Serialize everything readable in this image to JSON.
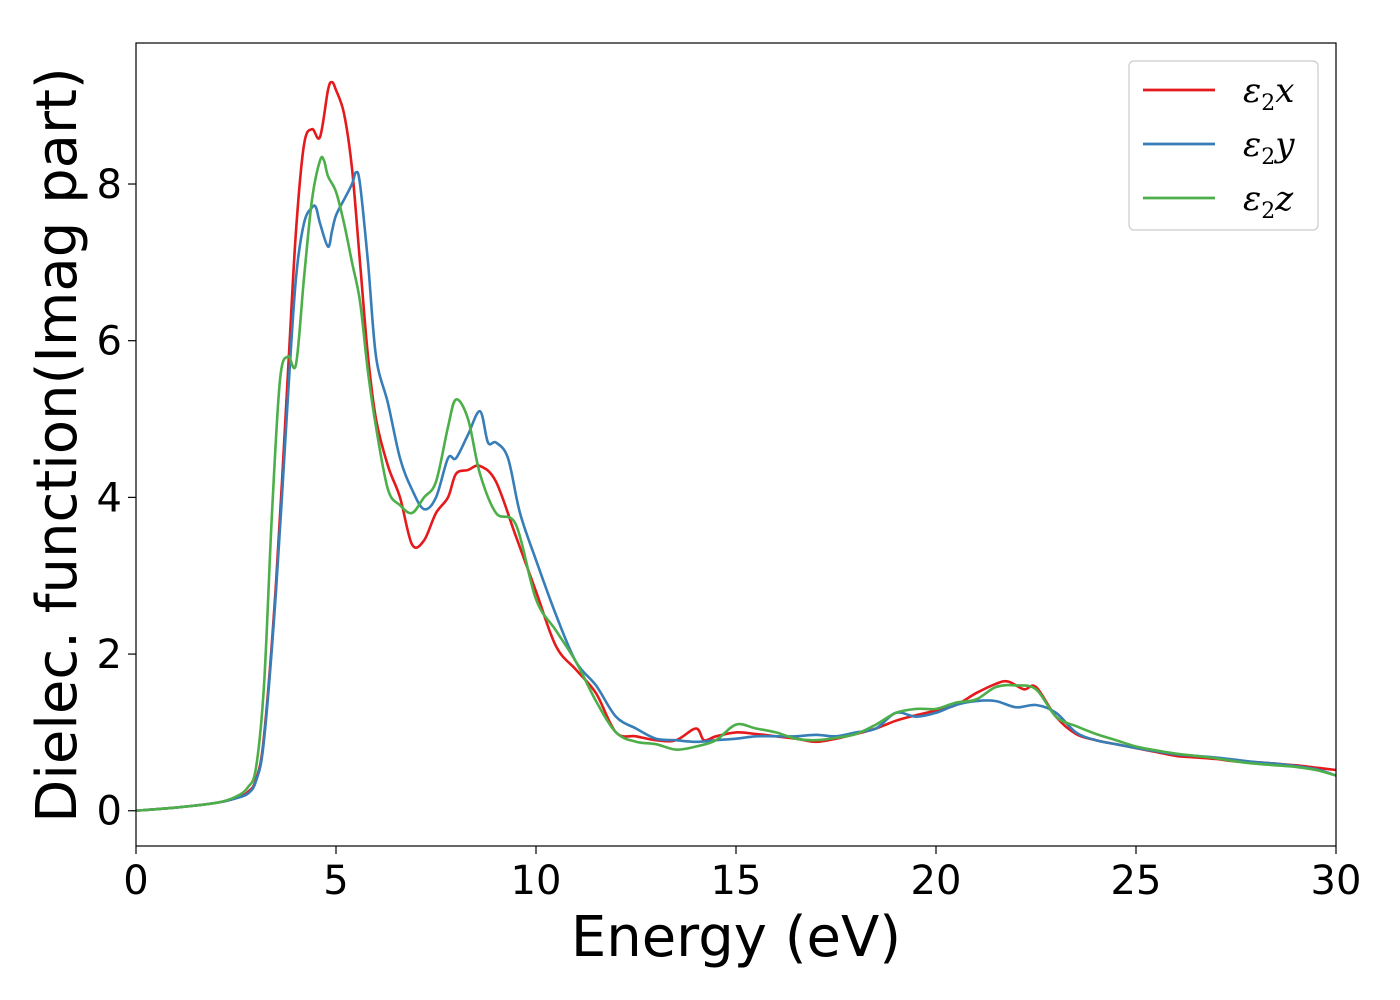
{
  "chart_data": {
    "type": "line",
    "xlabel": "Energy (eV)",
    "ylabel": "Dielec. function(Imag part)",
    "xlim": [
      0,
      30
    ],
    "ylim": [
      -0.45,
      9.8
    ],
    "xticks": [
      0,
      5,
      10,
      15,
      20,
      25,
      30
    ],
    "yticks": [
      0,
      2,
      4,
      6,
      8
    ],
    "xtick_labels": [
      "0",
      "5",
      "10",
      "15",
      "20",
      "25",
      "30"
    ],
    "ytick_labels": [
      "0",
      "2",
      "4",
      "6",
      "8"
    ],
    "grid": false,
    "legend_position": "top-right",
    "series": [
      {
        "name": "ε2x",
        "legend_base": "ε",
        "legend_sub": "2",
        "legend_suffix": "x",
        "color": "#e41a1c",
        "x": [
          0,
          1,
          2,
          2.5,
          2.8,
          3.0,
          3.2,
          3.5,
          3.8,
          4.0,
          4.2,
          4.4,
          4.6,
          4.8,
          4.9,
          5.0,
          5.2,
          5.4,
          5.6,
          5.8,
          6.0,
          6.3,
          6.6,
          6.9,
          7.2,
          7.5,
          7.8,
          8.0,
          8.3,
          8.6,
          9.0,
          9.5,
          10.0,
          10.5,
          11.0,
          11.5,
          12.0,
          12.5,
          13.0,
          13.5,
          14.0,
          14.2,
          14.5,
          15.0,
          15.5,
          16.0,
          16.5,
          17.0,
          17.5,
          18.0,
          18.5,
          19.0,
          19.5,
          20.0,
          20.5,
          21.0,
          21.5,
          21.8,
          22.2,
          22.5,
          23.0,
          23.5,
          24.0,
          24.5,
          25.0,
          25.5,
          26.0,
          26.5,
          27.0,
          27.5,
          28.0,
          28.5,
          29.0,
          29.5,
          30.0
        ],
        "y": [
          0,
          0.04,
          0.1,
          0.16,
          0.24,
          0.4,
          0.95,
          2.9,
          5.6,
          7.4,
          8.5,
          8.7,
          8.6,
          9.2,
          9.3,
          9.2,
          8.9,
          8.2,
          7.0,
          5.8,
          5.0,
          4.4,
          4.0,
          3.4,
          3.45,
          3.8,
          4.0,
          4.3,
          4.35,
          4.4,
          4.2,
          3.5,
          2.8,
          2.1,
          1.8,
          1.5,
          1.0,
          0.95,
          0.9,
          0.9,
          1.05,
          0.9,
          0.95,
          1.0,
          0.98,
          0.95,
          0.92,
          0.88,
          0.92,
          0.98,
          1.05,
          1.15,
          1.22,
          1.28,
          1.35,
          1.5,
          1.62,
          1.65,
          1.55,
          1.58,
          1.2,
          0.98,
          0.9,
          0.85,
          0.8,
          0.75,
          0.7,
          0.68,
          0.66,
          0.63,
          0.62,
          0.6,
          0.58,
          0.55,
          0.52
        ]
      },
      {
        "name": "ε2y",
        "legend_base": "ε",
        "legend_sub": "2",
        "legend_suffix": "y",
        "color": "#377eb8",
        "x": [
          0,
          1,
          2,
          2.5,
          2.8,
          3.0,
          3.2,
          3.5,
          3.8,
          4.0,
          4.2,
          4.4,
          4.5,
          4.6,
          4.8,
          4.9,
          5.0,
          5.2,
          5.4,
          5.5,
          5.6,
          5.8,
          6.0,
          6.3,
          6.6,
          6.9,
          7.2,
          7.5,
          7.8,
          8.0,
          8.3,
          8.6,
          8.8,
          9.0,
          9.3,
          9.6,
          10.0,
          10.5,
          11.0,
          11.5,
          12.0,
          12.5,
          13.0,
          13.5,
          14.0,
          14.5,
          15.0,
          15.5,
          16.0,
          16.5,
          17.0,
          17.5,
          18.0,
          18.5,
          19.0,
          19.5,
          20.0,
          20.5,
          21.0,
          21.5,
          22.0,
          22.5,
          23.0,
          23.5,
          24.0,
          24.5,
          25.0,
          25.5,
          26.0,
          26.5,
          27.0,
          27.5,
          28.0,
          28.5,
          29.0,
          29.5,
          30.0
        ],
        "y": [
          0,
          0.04,
          0.1,
          0.16,
          0.22,
          0.38,
          0.9,
          2.8,
          5.3,
          6.8,
          7.5,
          7.7,
          7.7,
          7.5,
          7.2,
          7.4,
          7.6,
          7.8,
          8.0,
          8.15,
          8.0,
          7.0,
          5.8,
          5.2,
          4.5,
          4.1,
          3.85,
          4.0,
          4.5,
          4.5,
          4.8,
          5.1,
          4.7,
          4.7,
          4.5,
          3.8,
          3.2,
          2.5,
          1.9,
          1.6,
          1.2,
          1.05,
          0.92,
          0.9,
          0.88,
          0.9,
          0.92,
          0.95,
          0.95,
          0.95,
          0.97,
          0.95,
          1.0,
          1.05,
          1.25,
          1.2,
          1.25,
          1.35,
          1.4,
          1.4,
          1.32,
          1.35,
          1.25,
          1.0,
          0.9,
          0.85,
          0.8,
          0.76,
          0.72,
          0.7,
          0.68,
          0.65,
          0.62,
          0.6,
          0.57,
          0.53,
          0.45
        ]
      },
      {
        "name": "ε2z",
        "legend_base": "ε",
        "legend_sub": "2",
        "legend_suffix": "z",
        "color": "#4daf4a",
        "x": [
          0,
          1,
          2,
          2.5,
          2.8,
          3.0,
          3.2,
          3.4,
          3.6,
          3.8,
          4.0,
          4.2,
          4.4,
          4.6,
          4.7,
          4.8,
          5.0,
          5.2,
          5.4,
          5.6,
          5.8,
          6.0,
          6.3,
          6.6,
          6.9,
          7.2,
          7.5,
          7.8,
          8.0,
          8.3,
          8.6,
          9.0,
          9.5,
          10.0,
          10.5,
          11.0,
          11.5,
          12.0,
          12.5,
          13.0,
          13.5,
          14.0,
          14.5,
          15.0,
          15.5,
          16.0,
          16.5,
          17.0,
          17.5,
          18.0,
          18.5,
          19.0,
          19.5,
          20.0,
          20.5,
          21.0,
          21.5,
          22.0,
          22.5,
          23.0,
          23.5,
          24.0,
          24.5,
          25.0,
          25.5,
          26.0,
          26.5,
          27.0,
          27.5,
          28.0,
          28.5,
          29.0,
          29.5,
          30.0
        ],
        "y": [
          0,
          0.04,
          0.1,
          0.18,
          0.3,
          0.55,
          1.6,
          3.8,
          5.5,
          5.8,
          5.7,
          6.8,
          7.8,
          8.3,
          8.3,
          8.1,
          7.9,
          7.5,
          7.0,
          6.5,
          5.6,
          4.9,
          4.1,
          3.9,
          3.8,
          4.0,
          4.2,
          4.9,
          5.25,
          5.0,
          4.3,
          3.8,
          3.65,
          2.7,
          2.3,
          1.9,
          1.4,
          1.0,
          0.88,
          0.85,
          0.78,
          0.82,
          0.9,
          1.1,
          1.05,
          1.0,
          0.92,
          0.9,
          0.93,
          0.98,
          1.1,
          1.25,
          1.3,
          1.3,
          1.38,
          1.42,
          1.58,
          1.6,
          1.55,
          1.2,
          1.08,
          0.98,
          0.9,
          0.82,
          0.77,
          0.73,
          0.7,
          0.67,
          0.63,
          0.6,
          0.58,
          0.56,
          0.52,
          0.45
        ]
      }
    ]
  }
}
